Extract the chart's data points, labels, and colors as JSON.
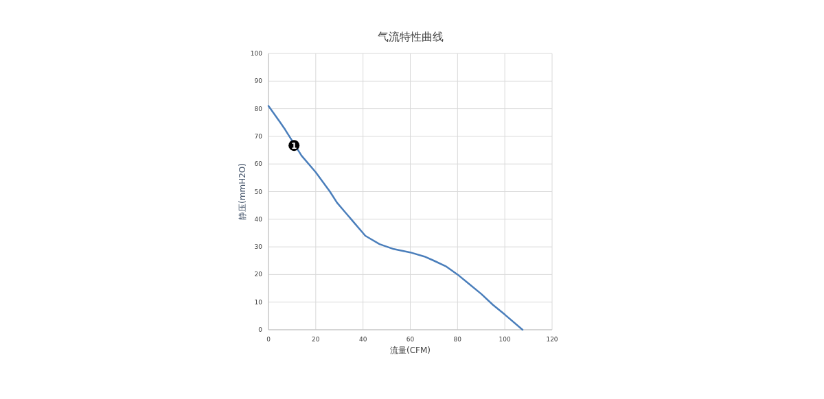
{
  "chart_data": {
    "type": "line",
    "title": "气流特性曲线",
    "xlabel": "流量(CFM)",
    "ylabel": "静压(mmH2O)",
    "x": [
      0,
      5,
      7,
      14,
      20,
      26,
      29,
      32,
      36,
      40,
      41,
      42,
      47,
      53,
      60,
      66,
      70,
      75,
      80,
      85,
      90,
      95,
      100,
      107.5
    ],
    "values": [
      81,
      75,
      72.5,
      63,
      57,
      50,
      46,
      43,
      39,
      35,
      34,
      33.5,
      31,
      29.2,
      28,
      26.5,
      25,
      23,
      20,
      16.5,
      13,
      9,
      5.5,
      0
    ],
    "color": "#4a7ebb",
    "xlim": [
      0,
      120
    ],
    "ylim": [
      0,
      100
    ],
    "xticks": [
      0,
      20,
      40,
      60,
      80,
      100,
      120
    ],
    "yticks": [
      0,
      10,
      20,
      30,
      40,
      50,
      60,
      70,
      80,
      90,
      100
    ],
    "grid": true,
    "marker": "none",
    "line_style": "solid",
    "annotations": [
      {
        "text": "1",
        "x": 10.8,
        "y": 66.7
      }
    ]
  }
}
